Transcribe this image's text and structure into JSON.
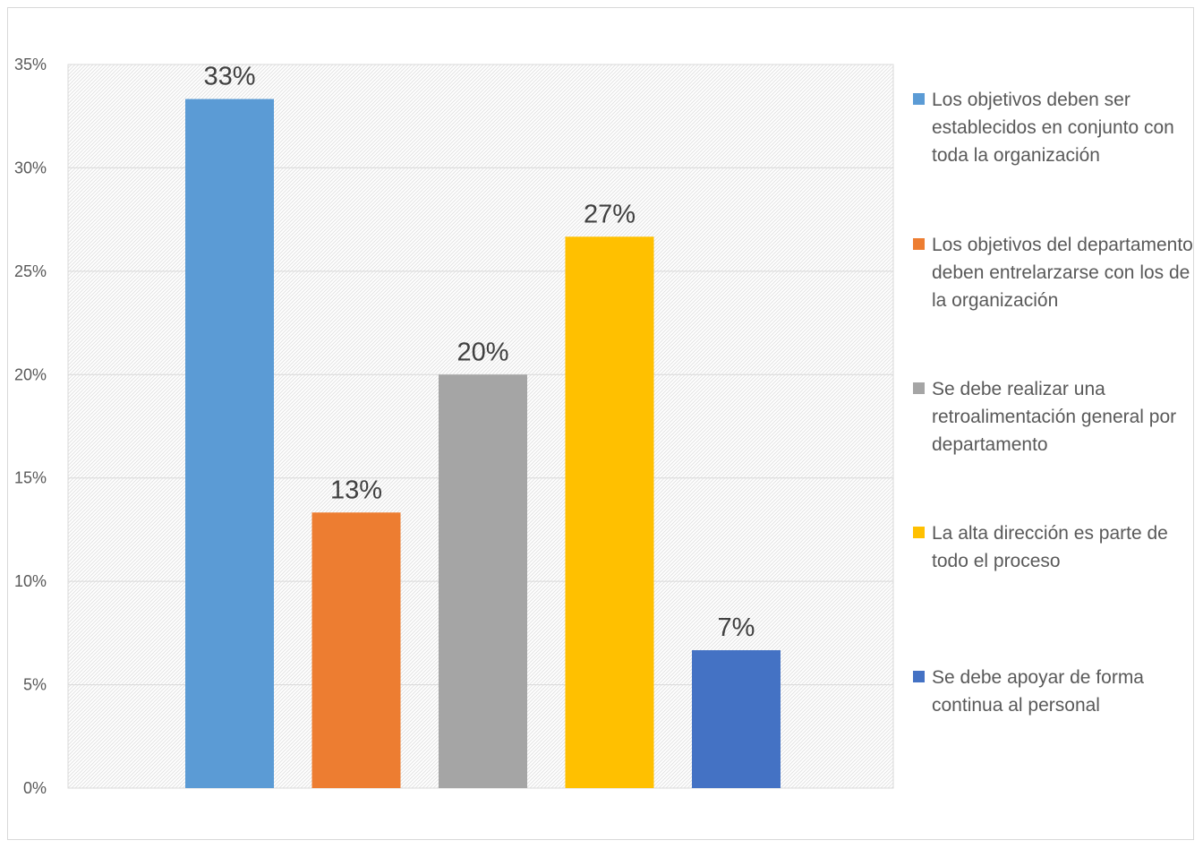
{
  "chart_data": {
    "type": "bar",
    "title": "",
    "xlabel": "",
    "ylabel": "",
    "ylim": [
      0,
      35
    ],
    "y_ticks": [
      "0%",
      "5%",
      "10%",
      "15%",
      "20%",
      "25%",
      "30%",
      "35%"
    ],
    "y_tick_values": [
      0,
      5,
      10,
      15,
      20,
      25,
      30,
      35
    ],
    "grid": true,
    "legend_position": "right",
    "categories": [
      "Los objetivos deben ser establecidos en conjunto con toda la organización",
      "Los objetivos del departamento deben entrelarzarse con los de la organización",
      "Se debe realizar una retroalimentación general por departamento",
      "La alta dirección es parte de todo el proceso",
      "Se debe apoyar de forma continua al personal"
    ],
    "values": [
      33.33,
      13.33,
      20,
      26.67,
      6.67
    ],
    "data_labels": [
      "33%",
      "13%",
      "20%",
      "27%",
      "7%"
    ],
    "colors": [
      "#5b9bd5",
      "#ed7d31",
      "#a5a5a5",
      "#ffc000",
      "#4472c4"
    ]
  },
  "legend": [
    {
      "label": "Los objetivos deben ser establecidos en conjunto con toda la organización",
      "color": "#5b9bd5"
    },
    {
      "label": "Los objetivos del departamento deben entrelarzarse con los de la organización",
      "color": "#ed7d31"
    },
    {
      "label": "Se debe realizar una retroalimentación general por departamento",
      "color": "#a5a5a5"
    },
    {
      "label": "La alta dirección es parte de todo el proceso",
      "color": "#ffc000"
    },
    {
      "label": "Se debe apoyar de forma continua al personal",
      "color": "#4472c4"
    }
  ]
}
